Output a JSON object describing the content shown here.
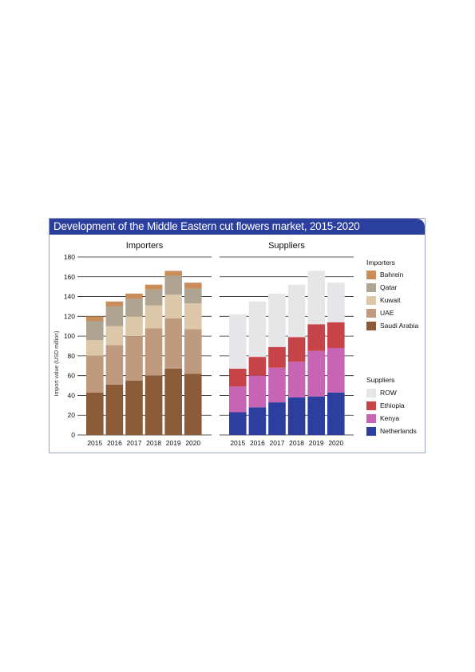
{
  "figure": {
    "title": "Development of the Middle Eastern cut flowers market, 2015-2020"
  },
  "chart_data": [
    {
      "type": "bar",
      "stacked": true,
      "title": "Importers",
      "ylabel": "Import value (USD million)",
      "ylim": [
        0,
        180
      ],
      "yticks": [
        0,
        20,
        40,
        60,
        80,
        100,
        120,
        140,
        160,
        180
      ],
      "grid": true,
      "categories": [
        "2015",
        "2016",
        "2017",
        "2018",
        "2019",
        "2020"
      ],
      "series": [
        {
          "name": "Saudi Arabia",
          "color": "#8b5a36",
          "values": [
            43,
            51,
            55,
            60,
            67,
            62
          ]
        },
        {
          "name": "UAE",
          "color": "#c09a7f",
          "values": [
            37,
            40,
            45,
            48,
            51,
            45
          ]
        },
        {
          "name": "Kuwait",
          "color": "#dcc8a8",
          "values": [
            16,
            19,
            20,
            23,
            24,
            26
          ]
        },
        {
          "name": "Qatar",
          "color": "#aea491",
          "values": [
            19,
            20,
            18,
            16,
            19,
            15
          ]
        },
        {
          "name": "Bahrein",
          "color": "#c88d5a",
          "values": [
            5,
            5,
            5,
            5,
            5,
            6
          ]
        }
      ],
      "legend_title": "Importers",
      "legend_position": "right"
    },
    {
      "type": "bar",
      "stacked": true,
      "title": "Suppliers",
      "ylim": [
        0,
        180
      ],
      "grid": true,
      "categories": [
        "2015",
        "2016",
        "2017",
        "2018",
        "2019",
        "2020"
      ],
      "series": [
        {
          "name": "Netherlands",
          "color": "#2d3f9e",
          "values": [
            23,
            28,
            33,
            38,
            39,
            43
          ]
        },
        {
          "name": "Kenya",
          "color": "#c864b4",
          "values": [
            26,
            32,
            35,
            36,
            46,
            45
          ]
        },
        {
          "name": "Ethiopia",
          "color": "#c64448",
          "values": [
            18,
            19,
            21,
            25,
            27,
            26
          ]
        },
        {
          "name": "ROW",
          "color": "#e6e6e8",
          "values": [
            55,
            56,
            54,
            53,
            54,
            40
          ]
        }
      ],
      "legend_title": "Suppliers",
      "legend_position": "right"
    }
  ]
}
